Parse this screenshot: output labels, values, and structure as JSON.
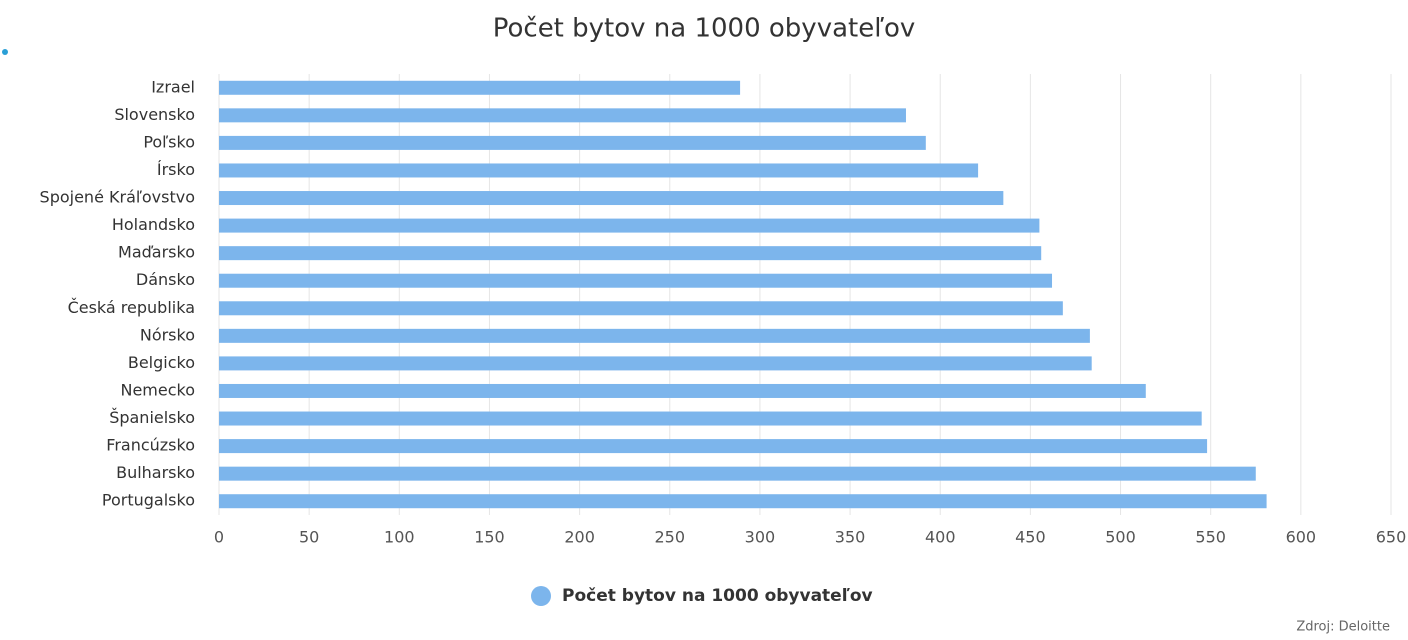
{
  "chart_data": {
    "type": "bar",
    "orientation": "horizontal",
    "title": "Počet bytov na 1000 obyvateľov",
    "categories": [
      "Izrael",
      "Slovensko",
      "Poľsko",
      "Írsko",
      "Spojené Kráľovstvo",
      "Holandsko",
      "Maďarsko",
      "Dánsko",
      "Česká republika",
      "Nórsko",
      "Belgicko",
      "Nemecko",
      "Španielsko",
      "Francúzsko",
      "Bulharsko",
      "Portugalsko"
    ],
    "series": [
      {
        "name": "Počet bytov na 1000 obyvateľov",
        "color": "#7cb5ec",
        "values": [
          289,
          381,
          392,
          421,
          435,
          455,
          456,
          462,
          468,
          483,
          484,
          514,
          545,
          548,
          575,
          581
        ]
      }
    ],
    "xlim": [
      0,
      650
    ],
    "xticks": [
      0,
      50,
      100,
      150,
      200,
      250,
      300,
      350,
      400,
      450,
      500,
      550,
      600,
      650
    ],
    "grid": true,
    "legend": "bottom",
    "source": "Zdroj: Deloitte"
  }
}
